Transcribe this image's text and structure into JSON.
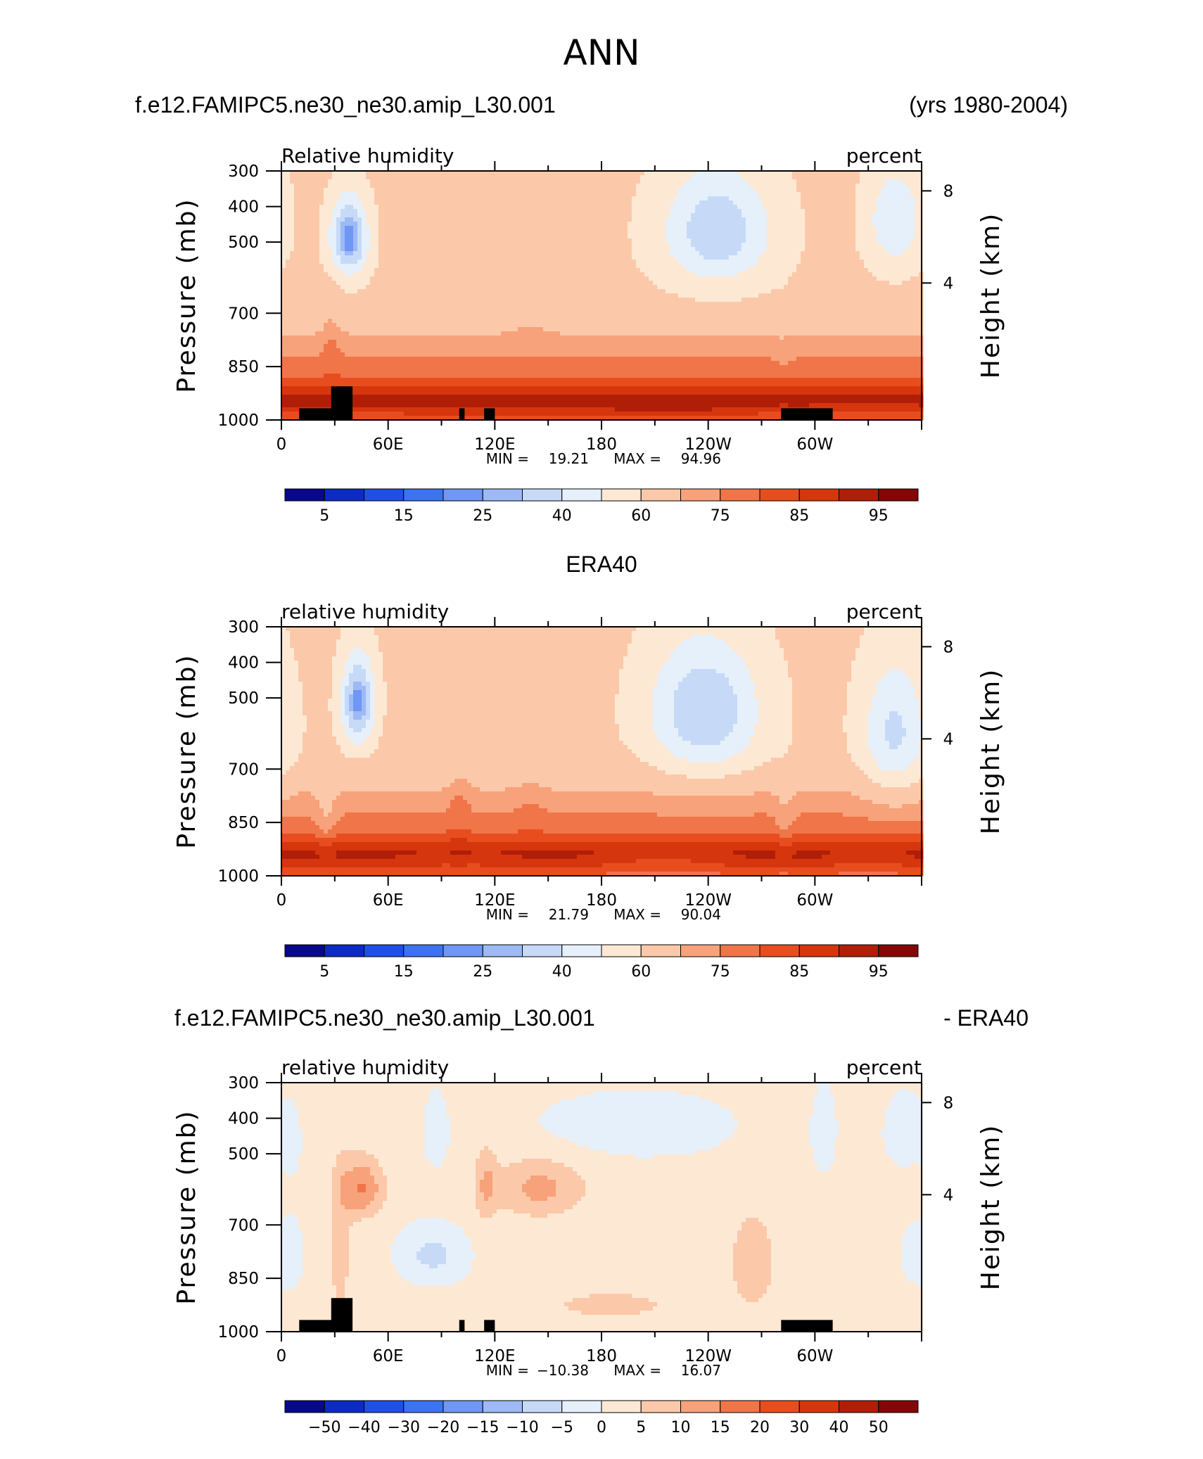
{
  "figure": {
    "title": "ANN",
    "case_name": "f.e12.FAMIPC5.ne30_ne30.amip_L30.001",
    "years": "(yrs 1980-2004)",
    "obs_name": "ERA40",
    "diff_suffix": "- ERA40"
  },
  "colors": {
    "rh": [
      "#08088a",
      "#0c2bc4",
      "#1f4fe6",
      "#3d72f2",
      "#6f97f3",
      "#9db9f6",
      "#c6daf8",
      "#e6f0fa",
      "#fde8d4",
      "#fbc9a9",
      "#f7a27a",
      "#f07549",
      "#e84d1f",
      "#d6360d",
      "#b11e08",
      "#850606"
    ],
    "diff": [
      "#08088a",
      "#0c2bc4",
      "#1f4fe6",
      "#3d72f2",
      "#6f97f3",
      "#9db9f6",
      "#c6daf8",
      "#e6f0fa",
      "#fde8d4",
      "#fbc9a9",
      "#f7a27a",
      "#f07549",
      "#e84d1f",
      "#d6360d",
      "#b11e08",
      "#850606"
    ],
    "topography": "#000000"
  },
  "chart_data": [
    {
      "type": "heatmap",
      "panel": "model",
      "subtitle_left": "Relative humidity",
      "subtitle_right": "percent",
      "xlabel": "",
      "ylabel": "Pressure (mb)",
      "y2label": "Height (km)",
      "xticks": [
        "0",
        "60E",
        "120E",
        "180",
        "120W",
        "60W"
      ],
      "yticks": [
        "300",
        "400",
        "500",
        "700",
        "850",
        "1000"
      ],
      "y2ticks": [
        "8",
        "4"
      ],
      "xlim": [
        0,
        360
      ],
      "ylim": [
        1000,
        300
      ],
      "min_label": "MIN =",
      "min": "19.21",
      "max_label": "MAX =",
      "max": "94.96",
      "colorbar_levels": [
        "5",
        "15",
        "25",
        "40",
        "60",
        "75",
        "85",
        "95"
      ],
      "features": [
        {
          "lon": 38,
          "p": 415,
          "value": 20,
          "sx": 10,
          "sy": 75
        },
        {
          "lon": 245,
          "p": 400,
          "value": 32,
          "sx": 30,
          "sy": 110
        },
        {
          "lon": 345,
          "p": 380,
          "value": 40,
          "sx": 15,
          "sy": 90
        },
        {
          "lon": 140,
          "p": 520,
          "value": 68,
          "sx": 10,
          "sy": 120
        },
        {
          "lon": 120,
          "p": 480,
          "value": 62,
          "sx": 10,
          "sy": 80
        },
        {
          "lon": 28,
          "p": 640,
          "value": 72,
          "sx": 5,
          "sy": 150
        },
        {
          "lon": 282,
          "p": 700,
          "value": 72,
          "sx": 5,
          "sy": 200
        },
        {
          "lon": 110,
          "p": 945,
          "value": 90,
          "sx": 45,
          "sy": 40
        },
        {
          "lon": 215,
          "p": 945,
          "value": 92,
          "sx": 40,
          "sy": 40
        },
        {
          "lon": 325,
          "p": 945,
          "value": 88,
          "sx": 25,
          "sy": 40
        }
      ],
      "topography": [
        [
          10,
          33,
          945
        ],
        [
          28,
          40,
          850
        ],
        [
          100,
          103,
          945
        ],
        [
          114,
          120,
          945
        ],
        [
          281,
          310,
          945
        ]
      ]
    },
    {
      "type": "heatmap",
      "panel": "obs",
      "subtitle_left": "relative humidity",
      "subtitle_right": "percent",
      "xlabel": "",
      "ylabel": "Pressure (mb)",
      "y2label": "Height (km)",
      "xticks": [
        "0",
        "60E",
        "120E",
        "180",
        "120W",
        "60W"
      ],
      "yticks": [
        "300",
        "400",
        "500",
        "700",
        "850",
        "1000"
      ],
      "y2ticks": [
        "8",
        "4"
      ],
      "xlim": [
        0,
        360
      ],
      "ylim": [
        1000,
        300
      ],
      "min_label": "MIN =",
      "min": "21.79",
      "max_label": "MAX =",
      "max": "90.04",
      "colorbar_levels": [
        "5",
        "15",
        "25",
        "40",
        "60",
        "75",
        "85",
        "95"
      ],
      "features": [
        {
          "lon": 43,
          "p": 430,
          "value": 22,
          "sx": 9,
          "sy": 90
        },
        {
          "lon": 238,
          "p": 450,
          "value": 30,
          "sx": 30,
          "sy": 140
        },
        {
          "lon": 345,
          "p": 500,
          "value": 38,
          "sx": 18,
          "sy": 160
        },
        {
          "lon": 100,
          "p": 620,
          "value": 70,
          "sx": 6,
          "sy": 220
        },
        {
          "lon": 140,
          "p": 640,
          "value": 70,
          "sx": 8,
          "sy": 200
        },
        {
          "lon": 25,
          "p": 750,
          "value": 70,
          "sx": 6,
          "sy": 150
        },
        {
          "lon": 283,
          "p": 760,
          "value": 72,
          "sx": 5,
          "sy": 180
        },
        {
          "lon": 100,
          "p": 935,
          "value": 86,
          "sx": 40,
          "sy": 35
        },
        {
          "lon": 215,
          "p": 940,
          "value": 83,
          "sx": 40,
          "sy": 40
        },
        {
          "lon": 330,
          "p": 940,
          "value": 84,
          "sx": 25,
          "sy": 40
        }
      ],
      "topography": []
    },
    {
      "type": "heatmap",
      "panel": "difference",
      "subtitle_left": "relative humidity",
      "subtitle_right": "percent",
      "xlabel": "",
      "ylabel": "Pressure (mb)",
      "y2label": "Height (km)",
      "xticks": [
        "0",
        "60E",
        "120E",
        "180",
        "120W",
        "60W"
      ],
      "yticks": [
        "300",
        "400",
        "500",
        "700",
        "850",
        "1000"
      ],
      "y2ticks": [
        "8",
        "4"
      ],
      "xlim": [
        0,
        360
      ],
      "ylim": [
        1000,
        300
      ],
      "min_label": "MIN =",
      "min": "−10.38",
      "max_label": "MAX =",
      "max": "16.07",
      "colorbar_levels": [
        "−50",
        "−40",
        "−30",
        "−20",
        "−15",
        "−10",
        "−5",
        "0",
        "5",
        "10",
        "15",
        "20",
        "30",
        "40",
        "50"
      ],
      "features": [
        {
          "lon": 45,
          "p": 500,
          "value": 14,
          "sx": 12,
          "sy": 70
        },
        {
          "lon": 145,
          "p": 500,
          "value": 10,
          "sx": 25,
          "sy": 70
        },
        {
          "lon": 115,
          "p": 490,
          "value": 8,
          "sx": 6,
          "sy": 90
        },
        {
          "lon": 85,
          "p": 690,
          "value": -8,
          "sx": 18,
          "sy": 90
        },
        {
          "lon": 5,
          "p": 690,
          "value": -6,
          "sx": 6,
          "sy": 110
        },
        {
          "lon": 5,
          "p": 400,
          "value": -6,
          "sx": 5,
          "sy": 60
        },
        {
          "lon": 87,
          "p": 380,
          "value": -6,
          "sx": 6,
          "sy": 60
        },
        {
          "lon": 305,
          "p": 380,
          "value": -6,
          "sx": 6,
          "sy": 70
        },
        {
          "lon": 350,
          "p": 380,
          "value": -6,
          "sx": 10,
          "sy": 60
        },
        {
          "lon": 355,
          "p": 690,
          "value": -6,
          "sx": 6,
          "sy": 80
        },
        {
          "lon": 200,
          "p": 370,
          "value": -4,
          "sx": 60,
          "sy": 60
        },
        {
          "lon": 265,
          "p": 720,
          "value": 6,
          "sx": 15,
          "sy": 200
        },
        {
          "lon": 33,
          "p": 680,
          "value": 6,
          "sx": 6,
          "sy": 250
        },
        {
          "lon": 185,
          "p": 880,
          "value": 6,
          "sx": 35,
          "sy": 60
        }
      ],
      "topography": [
        [
          10,
          33,
          945
        ],
        [
          28,
          40,
          850
        ],
        [
          100,
          103,
          945
        ],
        [
          114,
          120,
          945
        ],
        [
          281,
          310,
          945
        ]
      ]
    }
  ]
}
